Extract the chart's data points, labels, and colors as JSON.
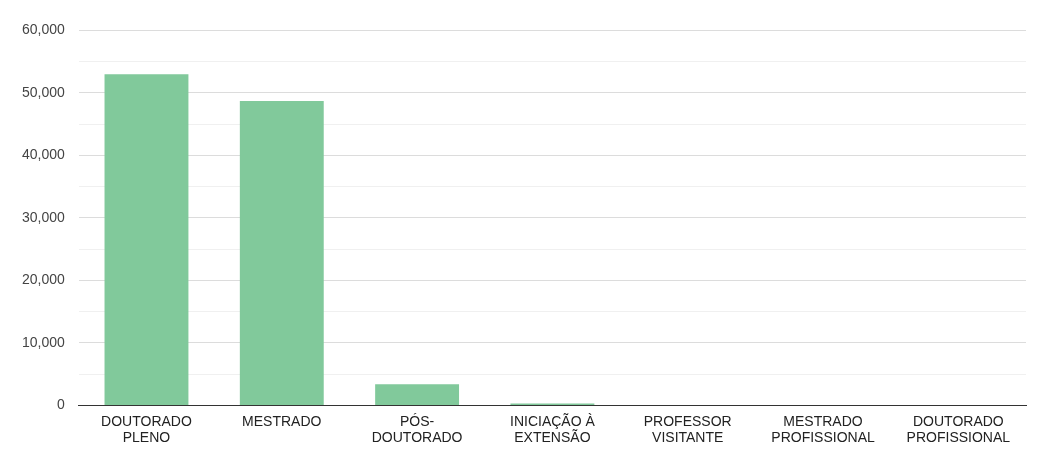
{
  "chart_data": {
    "type": "bar",
    "categories": [
      "DOUTORADO PLENO",
      "MESTRADO",
      "PÓS-DOUTORADO",
      "INICIAÇÃO À EXTENSÃO",
      "PROFESSOR VISITANTE",
      "MESTRADO PROFISSIONAL",
      "DOUTORADO PROFISSIONAL"
    ],
    "values": [
      53000,
      48700,
      3400,
      300,
      0,
      0,
      0
    ],
    "color": "#81c99b",
    "ylim": [
      0,
      60000
    ],
    "yticks": [
      0,
      {
        "value": 5000,
        "label": null
      },
      {
        "value": 10000,
        "label": "10,000"
      },
      {
        "value": 15000,
        "label": null
      },
      {
        "value": 20000,
        "label": "20,000"
      },
      {
        "value": 25000,
        "label": null
      },
      {
        "value": 30000,
        "label": "30,000"
      },
      {
        "value": 35000,
        "label": null
      },
      {
        "value": 40000,
        "label": "40,000"
      },
      {
        "value": 45000,
        "label": null
      },
      {
        "value": 50000,
        "label": "50,000"
      },
      {
        "value": 55000,
        "label": null
      },
      {
        "value": 60000,
        "label": "60,000"
      }
    ],
    "grid": "y",
    "legend": false
  }
}
